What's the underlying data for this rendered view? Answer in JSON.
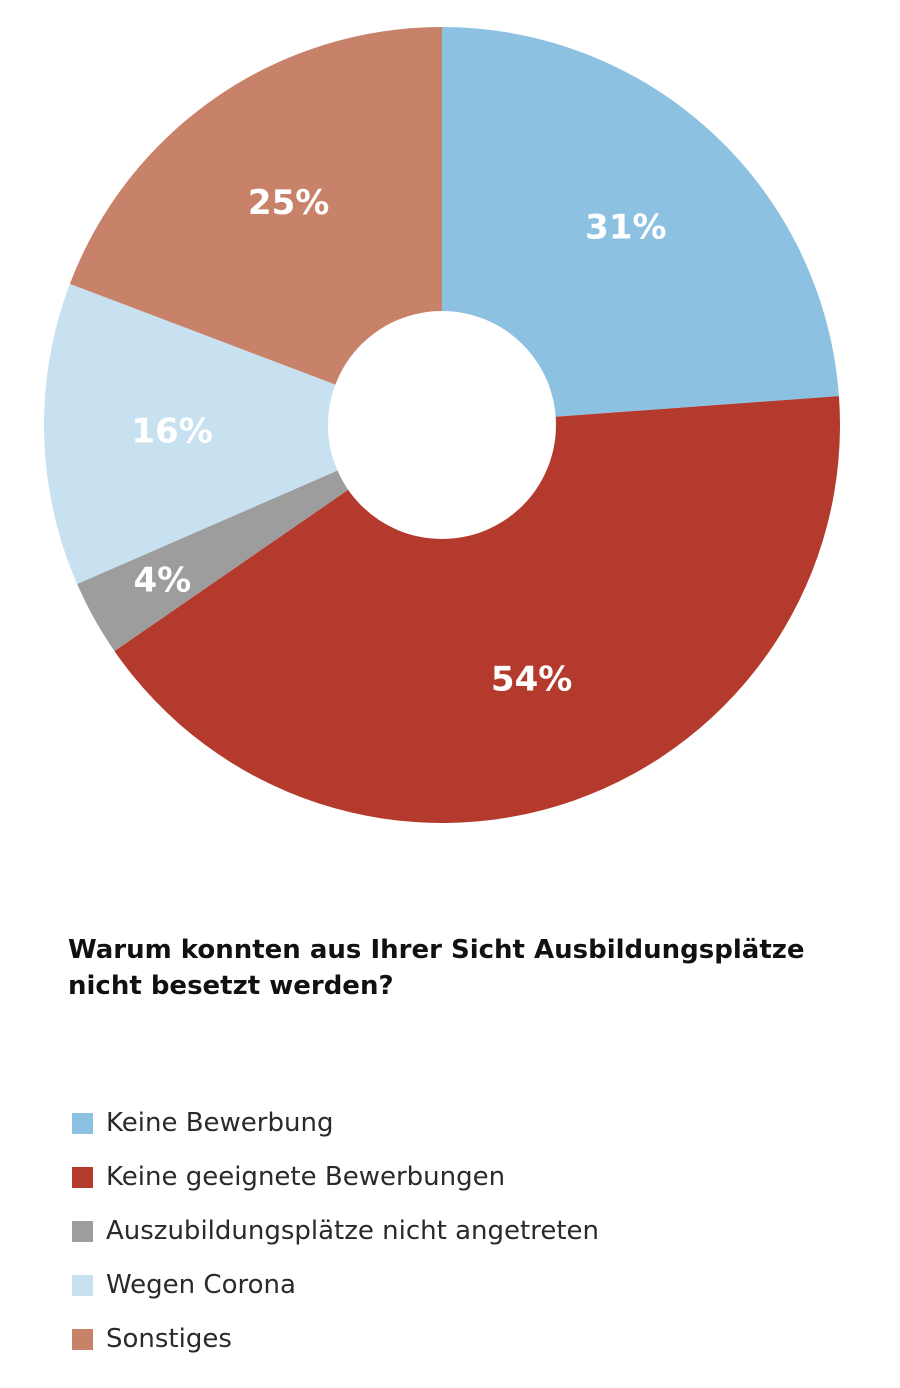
{
  "chart_data": {
    "type": "pie",
    "variant": "donut",
    "title": "Warum konnten aus Ihrer Sicht Ausbildungsplätze nicht besetzt werden?",
    "slices": [
      {
        "label": "Keine Bewerbung",
        "value": 31,
        "value_label": "31%",
        "color": "#8cc1e2"
      },
      {
        "label": "Keine geeignete Bewerbungen",
        "value": 54,
        "value_label": "54%",
        "color": "#b43a2e"
      },
      {
        "label": "Auszubildungsplätze nicht angetreten",
        "value": 4,
        "value_label": "4%",
        "color": "#9d9d9d"
      },
      {
        "label": "Wegen Corona",
        "value": 16,
        "value_label": "16%",
        "color": "#c8e1f1"
      },
      {
        "label": "Sonstiges",
        "value": 25,
        "value_label": "25%",
        "color": "#c8826a"
      }
    ],
    "legend_position": "bottom-left"
  }
}
